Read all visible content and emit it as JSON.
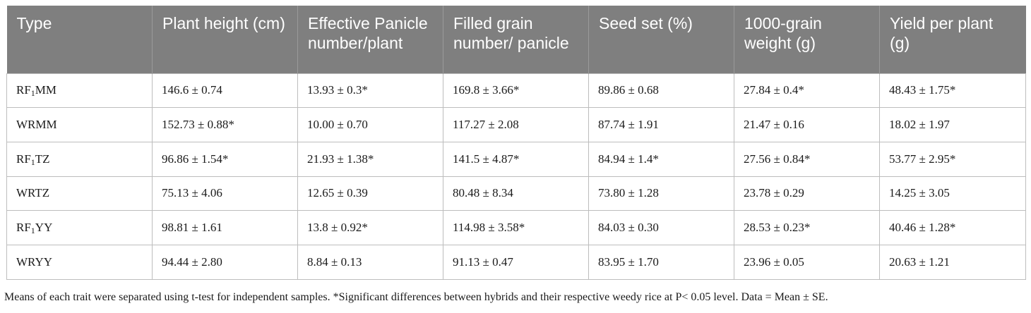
{
  "table": {
    "headers": [
      "Type",
      "Plant height (cm)",
      "Effective Panicle number/plant",
      "Filled grain number/ panicle",
      "Seed set (%)",
      "1000-grain weight (g)",
      "Yield per plant (g)"
    ],
    "rows": [
      {
        "type_pre": "RF",
        "type_sub": "1",
        "type_post": "MM",
        "cells": [
          "146.6 ± 0.74",
          "13.93 ± 0.3*",
          "169.8 ± 3.66*",
          "89.86 ± 0.68",
          "27.84 ± 0.4*",
          "48.43 ± 1.75*"
        ]
      },
      {
        "type_pre": "WRMM",
        "type_sub": "",
        "type_post": "",
        "cells": [
          "152.73 ± 0.88*",
          "10.00 ± 0.70",
          "117.27 ± 2.08",
          "87.74 ± 1.91",
          "21.47 ± 0.16",
          "18.02 ± 1.97"
        ]
      },
      {
        "type_pre": "RF",
        "type_sub": "1",
        "type_post": "TZ",
        "cells": [
          "96.86 ± 1.54*",
          "21.93 ± 1.38*",
          "141.5 ± 4.87*",
          "84.94 ± 1.4*",
          "27.56 ± 0.84*",
          "53.77 ± 2.95*"
        ]
      },
      {
        "type_pre": "WRTZ",
        "type_sub": "",
        "type_post": "",
        "cells": [
          "75.13 ± 4.06",
          "12.65 ± 0.39",
          "80.48 ± 8.34",
          "73.80 ± 1.28",
          "23.78 ± 0.29",
          "14.25 ± 3.05"
        ]
      },
      {
        "type_pre": "RF",
        "type_sub": "1",
        "type_post": "YY",
        "cells": [
          "98.81 ± 1.61",
          "13.8 ± 0.92*",
          "114.98 ± 3.58*",
          "84.03 ± 0.30",
          "28.53 ± 0.23*",
          "40.46 ± 1.28*"
        ]
      },
      {
        "type_pre": "WRYY",
        "type_sub": "",
        "type_post": "",
        "cells": [
          "94.44 ± 2.80",
          "8.84 ± 0.13",
          "91.13 ± 0.47",
          "83.95 ± 1.70",
          "23.96 ± 0.05",
          "20.63 ± 1.21"
        ]
      }
    ]
  },
  "footnote": "Means of each trait were separated using t-test for independent samples. *Significant differences between hybrids and their respective weedy rice at P< 0.05 level. Data = Mean ± SE."
}
